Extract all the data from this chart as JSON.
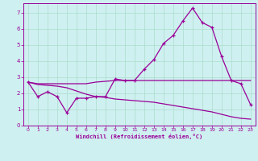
{
  "xlabel": "Windchill (Refroidissement éolien,°C)",
  "bg_color": "#cff0f0",
  "grid_color": "#aaddcc",
  "line_color": "#990099",
  "xlim": [
    -0.5,
    23.5
  ],
  "ylim": [
    0,
    7.6
  ],
  "xticks": [
    0,
    1,
    2,
    3,
    4,
    5,
    6,
    7,
    8,
    9,
    10,
    11,
    12,
    13,
    14,
    15,
    16,
    17,
    18,
    19,
    20,
    21,
    22,
    23
  ],
  "yticks": [
    0,
    1,
    2,
    3,
    4,
    5,
    6,
    7
  ],
  "line1_x": [
    0,
    1,
    2,
    3,
    4,
    5,
    6,
    7,
    8,
    9,
    10,
    11,
    12,
    13,
    14,
    15,
    16,
    17,
    18,
    19,
    20,
    21,
    22,
    23
  ],
  "line1_y": [
    2.7,
    1.8,
    2.1,
    1.8,
    0.8,
    1.7,
    1.7,
    1.8,
    1.8,
    2.9,
    2.8,
    2.8,
    3.5,
    4.1,
    5.1,
    5.6,
    6.5,
    7.3,
    6.4,
    6.1,
    4.3,
    2.8,
    2.6,
    1.3
  ],
  "line2_x": [
    0,
    1,
    2,
    3,
    4,
    5,
    6,
    7,
    8,
    9,
    10,
    11,
    12,
    13,
    14,
    15,
    16,
    17,
    18,
    19,
    20,
    21,
    22,
    23
  ],
  "line2_y": [
    2.7,
    2.6,
    2.6,
    2.6,
    2.6,
    2.6,
    2.6,
    2.7,
    2.75,
    2.8,
    2.8,
    2.8,
    2.8,
    2.8,
    2.8,
    2.8,
    2.8,
    2.8,
    2.8,
    2.8,
    2.8,
    2.8,
    2.8,
    2.8
  ],
  "line3_x": [
    0,
    1,
    2,
    3,
    4,
    5,
    6,
    7,
    8,
    9,
    10,
    11,
    12,
    13,
    14,
    15,
    16,
    17,
    18,
    19,
    20,
    21,
    22,
    23
  ],
  "line3_y": [
    2.7,
    2.55,
    2.5,
    2.45,
    2.35,
    2.15,
    1.95,
    1.8,
    1.75,
    1.65,
    1.6,
    1.55,
    1.5,
    1.45,
    1.35,
    1.25,
    1.15,
    1.05,
    0.95,
    0.85,
    0.7,
    0.55,
    0.45,
    0.4
  ]
}
